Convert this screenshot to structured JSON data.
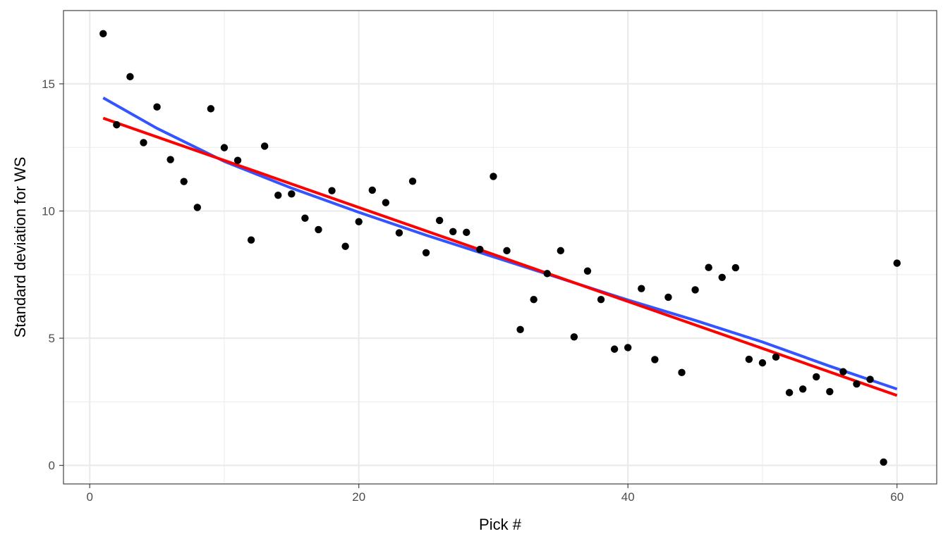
{
  "chart_data": {
    "type": "scatter",
    "title": "",
    "xlabel": "Pick #",
    "ylabel": "Standard deviation for WS",
    "xlim": [
      -1.95,
      62.95
    ],
    "ylim": [
      -0.73,
      17.88
    ],
    "x_ticks": [
      0,
      20,
      40,
      60
    ],
    "y_ticks": [
      0,
      5,
      10,
      15
    ],
    "x_minor": [
      10,
      30,
      50
    ],
    "y_minor": [
      2.5,
      7.5,
      12.5
    ],
    "grid": true,
    "legend": "none",
    "point_color": "#000000",
    "points": [
      {
        "x": 1,
        "y": 16.97
      },
      {
        "x": 2,
        "y": 13.39
      },
      {
        "x": 3,
        "y": 15.28
      },
      {
        "x": 4,
        "y": 12.69
      },
      {
        "x": 5,
        "y": 14.09
      },
      {
        "x": 6,
        "y": 12.02
      },
      {
        "x": 7,
        "y": 11.16
      },
      {
        "x": 8,
        "y": 10.14
      },
      {
        "x": 9,
        "y": 14.02
      },
      {
        "x": 10,
        "y": 12.49
      },
      {
        "x": 11,
        "y": 11.99
      },
      {
        "x": 12,
        "y": 8.86
      },
      {
        "x": 13,
        "y": 12.55
      },
      {
        "x": 14,
        "y": 10.62
      },
      {
        "x": 15,
        "y": 10.67
      },
      {
        "x": 16,
        "y": 9.72
      },
      {
        "x": 17,
        "y": 9.27
      },
      {
        "x": 18,
        "y": 10.8
      },
      {
        "x": 19,
        "y": 8.61
      },
      {
        "x": 20,
        "y": 9.58
      },
      {
        "x": 21,
        "y": 10.82
      },
      {
        "x": 22,
        "y": 10.33
      },
      {
        "x": 23,
        "y": 9.14
      },
      {
        "x": 24,
        "y": 11.17
      },
      {
        "x": 25,
        "y": 8.36
      },
      {
        "x": 26,
        "y": 9.63
      },
      {
        "x": 27,
        "y": 9.19
      },
      {
        "x": 28,
        "y": 9.16
      },
      {
        "x": 29,
        "y": 8.49
      },
      {
        "x": 30,
        "y": 11.36
      },
      {
        "x": 31,
        "y": 8.44
      },
      {
        "x": 32,
        "y": 5.34
      },
      {
        "x": 33,
        "y": 6.52
      },
      {
        "x": 34,
        "y": 7.54
      },
      {
        "x": 35,
        "y": 8.44
      },
      {
        "x": 36,
        "y": 5.05
      },
      {
        "x": 37,
        "y": 7.64
      },
      {
        "x": 38,
        "y": 6.52
      },
      {
        "x": 39,
        "y": 4.57
      },
      {
        "x": 40,
        "y": 4.63
      },
      {
        "x": 41,
        "y": 6.95
      },
      {
        "x": 42,
        "y": 4.16
      },
      {
        "x": 43,
        "y": 6.61
      },
      {
        "x": 44,
        "y": 3.65
      },
      {
        "x": 45,
        "y": 6.9
      },
      {
        "x": 46,
        "y": 7.78
      },
      {
        "x": 47,
        "y": 7.39
      },
      {
        "x": 48,
        "y": 7.77
      },
      {
        "x": 49,
        "y": 4.17
      },
      {
        "x": 50,
        "y": 4.03
      },
      {
        "x": 51,
        "y": 4.26
      },
      {
        "x": 52,
        "y": 2.86
      },
      {
        "x": 53,
        "y": 3.0
      },
      {
        "x": 54,
        "y": 3.48
      },
      {
        "x": 55,
        "y": 2.9
      },
      {
        "x": 56,
        "y": 3.68
      },
      {
        "x": 57,
        "y": 3.2
      },
      {
        "x": 58,
        "y": 3.38
      },
      {
        "x": 59,
        "y": 0.13
      },
      {
        "x": 60,
        "y": 7.95
      }
    ],
    "series": [
      {
        "type": "line",
        "color": "#3355ff",
        "x": [
          1,
          5,
          10,
          15,
          20,
          25,
          30,
          35,
          40,
          45,
          50,
          55,
          60
        ],
        "y": [
          14.45,
          13.25,
          11.95,
          10.9,
          9.95,
          9.05,
          8.2,
          7.35,
          6.5,
          5.7,
          4.85,
          3.9,
          3.0
        ]
      },
      {
        "type": "line",
        "color": "#ff0000",
        "x": [
          1,
          60
        ],
        "y": [
          13.65,
          2.75
        ]
      }
    ]
  }
}
